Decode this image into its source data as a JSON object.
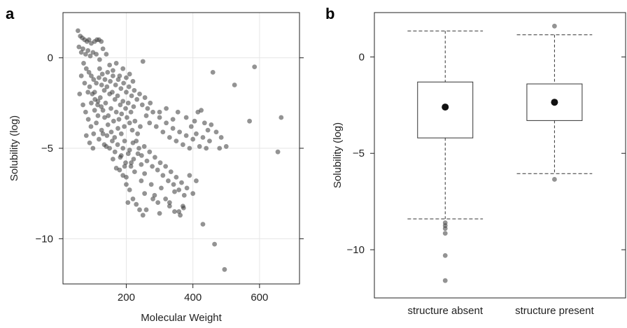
{
  "chart_data": [
    {
      "panel": "a",
      "type": "scatter",
      "title": "",
      "xlabel": "Molecular Weight",
      "ylabel": "Solubility (log)",
      "xlim": [
        10,
        720
      ],
      "ylim": [
        -12.5,
        2.5
      ],
      "xticks": [
        200,
        400,
        600
      ],
      "yticks": [
        0,
        -5,
        -10
      ],
      "grid": true,
      "point_color": "#3a3a3a",
      "points": [
        [
          55,
          1.5
        ],
        [
          62,
          1.2
        ],
        [
          68,
          1.1
        ],
        [
          75,
          1.0
        ],
        [
          82,
          0.9
        ],
        [
          88,
          1.0
        ],
        [
          95,
          0.8
        ],
        [
          105,
          0.9
        ],
        [
          112,
          1.0
        ],
        [
          118,
          1.0
        ],
        [
          125,
          0.9
        ],
        [
          58,
          0.6
        ],
        [
          65,
          0.3
        ],
        [
          70,
          0.5
        ],
        [
          78,
          0.2
        ],
        [
          85,
          0.4
        ],
        [
          92,
          0.1
        ],
        [
          100,
          0.3
        ],
        [
          110,
          0.2
        ],
        [
          120,
          -0.1
        ],
        [
          72,
          -0.3
        ],
        [
          80,
          -0.6
        ],
        [
          88,
          -0.8
        ],
        [
          95,
          -1.0
        ],
        [
          102,
          -1.2
        ],
        [
          110,
          -1.4
        ],
        [
          118,
          -1.1
        ],
        [
          126,
          -1.5
        ],
        [
          134,
          -1.8
        ],
        [
          142,
          -1.6
        ],
        [
          150,
          -2.0
        ],
        [
          158,
          -1.9
        ],
        [
          166,
          -2.3
        ],
        [
          174,
          -2.1
        ],
        [
          182,
          -2.6
        ],
        [
          190,
          -2.4
        ],
        [
          198,
          -2.8
        ],
        [
          206,
          -2.5
        ],
        [
          214,
          -3.0
        ],
        [
          222,
          -2.7
        ],
        [
          90,
          -1.6
        ],
        [
          98,
          -2.0
        ],
        [
          106,
          -2.3
        ],
        [
          114,
          -2.6
        ],
        [
          122,
          -2.2
        ],
        [
          130,
          -2.9
        ],
        [
          138,
          -2.5
        ],
        [
          146,
          -3.2
        ],
        [
          154,
          -2.8
        ],
        [
          162,
          -3.5
        ],
        [
          170,
          -3.0
        ],
        [
          178,
          -3.4
        ],
        [
          186,
          -3.1
        ],
        [
          194,
          -3.8
        ],
        [
          202,
          -3.3
        ],
        [
          210,
          -3.6
        ],
        [
          218,
          -4.0
        ],
        [
          226,
          -3.5
        ],
        [
          234,
          -4.2
        ],
        [
          242,
          -3.8
        ],
        [
          120,
          -0.6
        ],
        [
          128,
          -0.9
        ],
        [
          136,
          -1.2
        ],
        [
          144,
          -0.8
        ],
        [
          152,
          -1.3
        ],
        [
          160,
          -1.0
        ],
        [
          168,
          -1.5
        ],
        [
          176,
          -1.2
        ],
        [
          184,
          -1.7
        ],
        [
          192,
          -1.4
        ],
        [
          200,
          -1.9
        ],
        [
          208,
          -1.6
        ],
        [
          216,
          -2.1
        ],
        [
          224,
          -1.8
        ],
        [
          232,
          -2.3
        ],
        [
          240,
          -2.0
        ],
        [
          248,
          -2.6
        ],
        [
          256,
          -2.2
        ],
        [
          264,
          -2.8
        ],
        [
          272,
          -2.5
        ],
        [
          70,
          -2.6
        ],
        [
          78,
          -3.0
        ],
        [
          86,
          -3.4
        ],
        [
          94,
          -3.8
        ],
        [
          102,
          -4.2
        ],
        [
          110,
          -3.6
        ],
        [
          118,
          -4.5
        ],
        [
          126,
          -4.0
        ],
        [
          134,
          -4.8
        ],
        [
          142,
          -4.3
        ],
        [
          150,
          -5.0
        ],
        [
          158,
          -4.6
        ],
        [
          166,
          -5.2
        ],
        [
          174,
          -4.8
        ],
        [
          182,
          -5.5
        ],
        [
          190,
          -5.0
        ],
        [
          198,
          -5.8
        ],
        [
          206,
          -5.3
        ],
        [
          214,
          -6.0
        ],
        [
          222,
          -5.6
        ],
        [
          230,
          -4.6
        ],
        [
          238,
          -5.0
        ],
        [
          246,
          -5.4
        ],
        [
          254,
          -4.9
        ],
        [
          262,
          -5.7
        ],
        [
          270,
          -5.2
        ],
        [
          278,
          -6.0
        ],
        [
          286,
          -5.5
        ],
        [
          294,
          -6.2
        ],
        [
          302,
          -5.8
        ],
        [
          310,
          -6.5
        ],
        [
          318,
          -6.0
        ],
        [
          326,
          -6.8
        ],
        [
          334,
          -6.3
        ],
        [
          342,
          -7.0
        ],
        [
          350,
          -6.6
        ],
        [
          358,
          -7.3
        ],
        [
          366,
          -6.9
        ],
        [
          374,
          -7.6
        ],
        [
          382,
          -7.2
        ],
        [
          180,
          -6.2
        ],
        [
          190,
          -6.5
        ],
        [
          200,
          -7.0
        ],
        [
          210,
          -7.3
        ],
        [
          220,
          -7.8
        ],
        [
          230,
          -8.1
        ],
        [
          240,
          -8.4
        ],
        [
          250,
          -8.7
        ],
        [
          205,
          -8.0
        ],
        [
          255,
          -7.5
        ],
        [
          275,
          -7.0
        ],
        [
          285,
          -7.6
        ],
        [
          295,
          -8.0
        ],
        [
          305,
          -7.2
        ],
        [
          318,
          -7.8
        ],
        [
          330,
          -8.2
        ],
        [
          345,
          -7.4
        ],
        [
          358,
          -8.5
        ],
        [
          362,
          -8.7
        ],
        [
          372,
          -8.3
        ],
        [
          260,
          -3.2
        ],
        [
          270,
          -3.6
        ],
        [
          280,
          -3.0
        ],
        [
          290,
          -3.8
        ],
        [
          300,
          -3.3
        ],
        [
          310,
          -4.1
        ],
        [
          320,
          -3.6
        ],
        [
          330,
          -4.4
        ],
        [
          340,
          -3.9
        ],
        [
          350,
          -4.6
        ],
        [
          360,
          -4.1
        ],
        [
          370,
          -4.8
        ],
        [
          380,
          -4.3
        ],
        [
          390,
          -5.0
        ],
        [
          400,
          -4.5
        ],
        [
          410,
          -4.2
        ],
        [
          420,
          -4.9
        ],
        [
          430,
          -4.4
        ],
        [
          440,
          -5.0
        ],
        [
          450,
          -4.6
        ],
        [
          250,
          -0.2
        ],
        [
          300,
          -3.0
        ],
        [
          320,
          -2.8
        ],
        [
          340,
          -3.4
        ],
        [
          355,
          -3.0
        ],
        [
          380,
          -3.3
        ],
        [
          395,
          -3.8
        ],
        [
          405,
          -3.5
        ],
        [
          415,
          -3.0
        ],
        [
          425,
          -2.9
        ],
        [
          435,
          -3.6
        ],
        [
          445,
          -4.0
        ],
        [
          455,
          -3.7
        ],
        [
          470,
          -4.1
        ],
        [
          485,
          -4.4
        ],
        [
          500,
          -4.9
        ],
        [
          460,
          -0.8
        ],
        [
          525,
          -1.5
        ],
        [
          585,
          -0.5
        ],
        [
          570,
          -3.5
        ],
        [
          665,
          -3.3
        ],
        [
          655,
          -5.2
        ],
        [
          480,
          -5.0
        ],
        [
          430,
          -9.2
        ],
        [
          465,
          -10.3
        ],
        [
          495,
          -11.7
        ],
        [
          400,
          -7.5
        ],
        [
          410,
          -6.8
        ],
        [
          390,
          -6.5
        ],
        [
          370,
          -8.2
        ],
        [
          345,
          -8.5
        ],
        [
          330,
          -8.0
        ],
        [
          300,
          -8.6
        ],
        [
          280,
          -7.8
        ],
        [
          260,
          -8.4
        ],
        [
          245,
          -6.8
        ],
        [
          225,
          -6.3
        ],
        [
          215,
          -5.8
        ],
        [
          195,
          -6.0
        ],
        [
          185,
          -5.4
        ],
        [
          105,
          -1.9
        ],
        [
          115,
          -2.4
        ],
        [
          125,
          -2.7
        ],
        [
          135,
          -3.3
        ],
        [
          145,
          -3.7
        ],
        [
          155,
          -4.1
        ],
        [
          165,
          -4.4
        ],
        [
          175,
          -3.9
        ],
        [
          185,
          -4.2
        ],
        [
          195,
          -4.6
        ],
        [
          130,
          -4.2
        ],
        [
          140,
          -4.9
        ],
        [
          160,
          -5.6
        ],
        [
          170,
          -6.1
        ],
        [
          200,
          -6.6
        ],
        [
          210,
          -5.1
        ],
        [
          220,
          -4.7
        ],
        [
          235,
          -5.3
        ],
        [
          245,
          -5.9
        ],
        [
          255,
          -6.4
        ],
        [
          65,
          -1.0
        ],
        [
          75,
          -1.4
        ],
        [
          85,
          -1.9
        ],
        [
          95,
          -2.5
        ],
        [
          105,
          -2.9
        ],
        [
          115,
          -3.2
        ],
        [
          80,
          -4.3
        ],
        [
          90,
          -4.7
        ],
        [
          100,
          -5.0
        ],
        [
          60,
          -2.0
        ],
        [
          130,
          0.5
        ],
        [
          140,
          0.2
        ],
        [
          150,
          -0.4
        ],
        [
          160,
          -0.7
        ],
        [
          170,
          -0.3
        ],
        [
          180,
          -1.0
        ],
        [
          190,
          -0.6
        ],
        [
          200,
          -1.1
        ],
        [
          210,
          -0.9
        ],
        [
          220,
          -1.3
        ]
      ]
    },
    {
      "panel": "b",
      "type": "box",
      "title": "",
      "xlabel": "",
      "ylabel": "Solubility (log)",
      "ylim": [
        -12.5,
        2.3
      ],
      "yticks": [
        0,
        -5,
        -10
      ],
      "categories": [
        "structure absent",
        "structure present"
      ],
      "boxes": [
        {
          "q1": -4.2,
          "median": -2.6,
          "q3": -1.3,
          "whisker_low": -8.4,
          "whisker_high": 1.35,
          "outliers": [
            -8.6,
            -8.75,
            -8.9,
            -9.15,
            -10.3,
            -11.6
          ]
        },
        {
          "q1": -3.3,
          "median": -2.35,
          "q3": -1.4,
          "whisker_low": -6.05,
          "whisker_high": 1.15,
          "outliers": [
            1.6,
            -6.35
          ]
        }
      ]
    }
  ],
  "labels": {
    "panel_a": "a",
    "panel_b": "b"
  }
}
